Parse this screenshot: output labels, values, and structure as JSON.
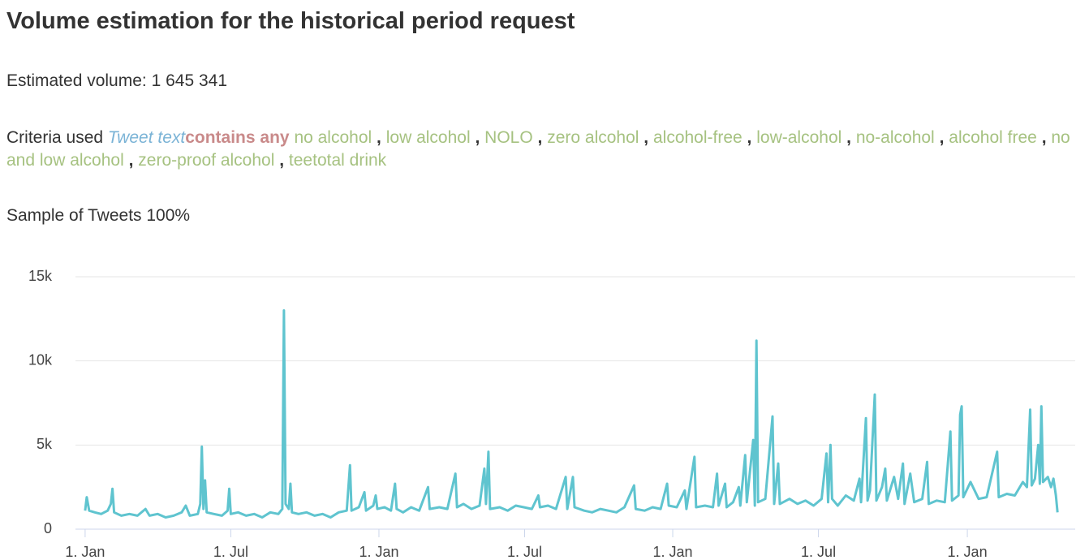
{
  "header": {
    "title": "Volume estimation for the historical period request"
  },
  "summary": {
    "label": "Estimated volume:",
    "volume": "1 645 341"
  },
  "criteria": {
    "label": "Criteria used",
    "field": "Tweet text",
    "operator": "contains any",
    "separator": ",",
    "terms": [
      "no alcohol",
      "low alcohol",
      "NOLO",
      "zero alcohol",
      "alcohol-free",
      "low-alcohol",
      "no-alcohol",
      "alcohol free",
      "no and low alcohol",
      "zero-proof alcohol",
      "teetotal drink"
    ]
  },
  "sample": {
    "label": "Sample of Tweets 100%"
  },
  "chart_data": {
    "type": "line",
    "x": [
      0,
      2,
      5,
      12,
      20,
      28,
      32,
      34,
      36,
      45,
      55,
      65,
      75,
      80,
      90,
      100,
      110,
      120,
      125,
      130,
      140,
      143,
      145,
      147,
      149,
      151,
      160,
      170,
      177,
      179,
      181,
      190,
      200,
      210,
      220,
      230,
      240,
      245,
      247,
      249,
      253,
      255,
      257,
      265,
      275,
      285,
      295,
      305,
      315,
      325,
      329,
      331,
      340,
      347,
      349,
      358,
      361,
      363,
      372,
      380,
      385,
      387,
      395,
      405,
      415,
      426,
      428,
      440,
      450,
      460,
      462,
      470,
      480,
      490,
      496,
      498,
      501,
      503,
      515,
      525,
      535,
      545,
      555,
      563,
      565,
      575,
      585,
      597,
      599,
      606,
      608,
      620,
      630,
      640,
      650,
      660,
      670,
      682,
      684,
      695,
      705,
      715,
      723,
      725,
      735,
      745,
      747,
      757,
      759,
      770,
      780,
      785,
      787,
      795,
      797,
      805,
      812,
      814,
      820,
      822,
      830,
      832,
      834,
      836,
      845,
      854,
      856,
      861,
      863,
      875,
      885,
      895,
      905,
      915,
      921,
      923,
      926,
      928,
      935,
      945,
      955,
      962,
      964,
      970,
      972,
      975,
      981,
      983,
      990,
      994,
      996,
      1005,
      1010,
      1016,
      1018,
      1025,
      1030,
      1040,
      1046,
      1048,
      1058,
      1068,
      1075,
      1077,
      1085,
      1087,
      1089,
      1091,
      1100,
      1110,
      1120,
      1133,
      1135,
      1145,
      1155,
      1165,
      1170,
      1174,
      1176,
      1180,
      1184,
      1186,
      1188,
      1190,
      1196,
      1200,
      1203,
      1206,
      1208
    ],
    "series": [
      {
        "color": "#5fc4cf",
        "values": [
          1100,
          1900,
          1100,
          1000,
          900,
          1100,
          1500,
          2400,
          1000,
          800,
          900,
          800,
          1200,
          800,
          900,
          700,
          800,
          1000,
          1400,
          800,
          900,
          1500,
          4900,
          1200,
          2900,
          1000,
          900,
          800,
          1100,
          2400,
          900,
          1000,
          800,
          900,
          700,
          1000,
          900,
          1200,
          13000,
          1500,
          1200,
          2700,
          1000,
          900,
          1000,
          800,
          900,
          700,
          1000,
          1100,
          3800,
          1100,
          1300,
          2200,
          1100,
          1400,
          2000,
          1200,
          1300,
          1100,
          2700,
          1200,
          1000,
          1300,
          1100,
          2500,
          1200,
          1300,
          1200,
          3300,
          1300,
          1500,
          1200,
          1400,
          3600,
          1500,
          4600,
          1200,
          1300,
          1100,
          1400,
          1300,
          1200,
          2000,
          1300,
          1400,
          1200,
          3100,
          1200,
          3100,
          1300,
          1100,
          1000,
          1200,
          1100,
          1000,
          1300,
          2600,
          1200,
          1100,
          1300,
          1200,
          2700,
          1400,
          1300,
          2300,
          1200,
          4300,
          1300,
          1400,
          1300,
          3300,
          1400,
          2700,
          1300,
          1600,
          2500,
          1400,
          4400,
          1600,
          5300,
          1400,
          11200,
          1600,
          1800,
          6700,
          1500,
          3900,
          1500,
          1800,
          1500,
          1700,
          1400,
          1800,
          4500,
          1600,
          5000,
          1800,
          1400,
          2000,
          1700,
          3000,
          1600,
          6600,
          1700,
          2300,
          8000,
          1700,
          2500,
          3600,
          1700,
          3100,
          1800,
          3900,
          1500,
          3300,
          1600,
          1800,
          4000,
          1500,
          1700,
          1600,
          5800,
          1700,
          2000,
          6800,
          7300,
          1900,
          2800,
          1800,
          1900,
          4600,
          1900,
          2100,
          2000,
          2800,
          2500,
          7100,
          2600,
          3000,
          5000,
          2700,
          7300,
          2800,
          3100,
          2500,
          3000,
          2000,
          1000
        ]
      }
    ],
    "xlim": [
      -12,
      1230
    ],
    "ylim": [
      0,
      15000
    ],
    "xticks": [
      {
        "value": 0,
        "label": "1. Jan"
      },
      {
        "value": 181,
        "label": "1. Jul"
      },
      {
        "value": 365,
        "label": "1. Jan"
      },
      {
        "value": 546,
        "label": "1. Jul"
      },
      {
        "value": 730,
        "label": "1. Jan"
      },
      {
        "value": 911,
        "label": "1. Jul"
      },
      {
        "value": 1096,
        "label": "1. Jan"
      }
    ],
    "yticks": [
      0,
      {
        "value": 5000,
        "label": "5k"
      },
      {
        "value": 10000,
        "label": "10k"
      },
      {
        "value": 15000,
        "label": "15k"
      }
    ],
    "grid": true
  }
}
